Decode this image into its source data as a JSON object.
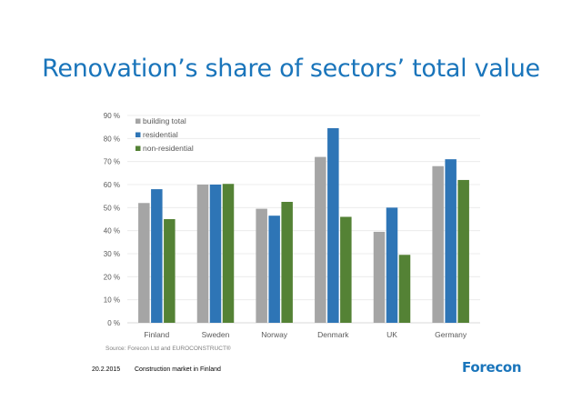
{
  "slide": {
    "title": "Renovation’s share of sectors’ total value",
    "source": "Source: Forecon Ltd and EUROCONSTRUCT®",
    "footer_date": "20.2.2015",
    "footer_text": "Construction market in Finland",
    "logo": "Forecon"
  },
  "chart_data": {
    "type": "bar",
    "title": "Renovation’s share of sectors’ total value",
    "xlabel": "",
    "ylabel": "",
    "categories": [
      "Finland",
      "Sweden",
      "Norway",
      "Denmark",
      "UK",
      "Germany"
    ],
    "series": [
      {
        "name": "building total",
        "color": "#a5a5a5",
        "values": [
          52,
          60,
          49.5,
          72,
          39.5,
          68
        ]
      },
      {
        "name": "residential",
        "color": "#2e75b6",
        "values": [
          58,
          60,
          46.5,
          84.5,
          50,
          71
        ]
      },
      {
        "name": "non-residential",
        "color": "#548235",
        "values": [
          45,
          60.3,
          52.5,
          46,
          29.5,
          62
        ]
      }
    ],
    "ylim": [
      0,
      90
    ],
    "yticks": [
      0,
      10,
      20,
      30,
      40,
      50,
      60,
      70,
      80,
      90
    ],
    "ytick_labels": [
      "0 %",
      "10 %",
      "20 %",
      "30 %",
      "40 %",
      "50 %",
      "60 %",
      "70 %",
      "80 %",
      "90 %"
    ],
    "grid": true,
    "legend_position": "top-left"
  }
}
